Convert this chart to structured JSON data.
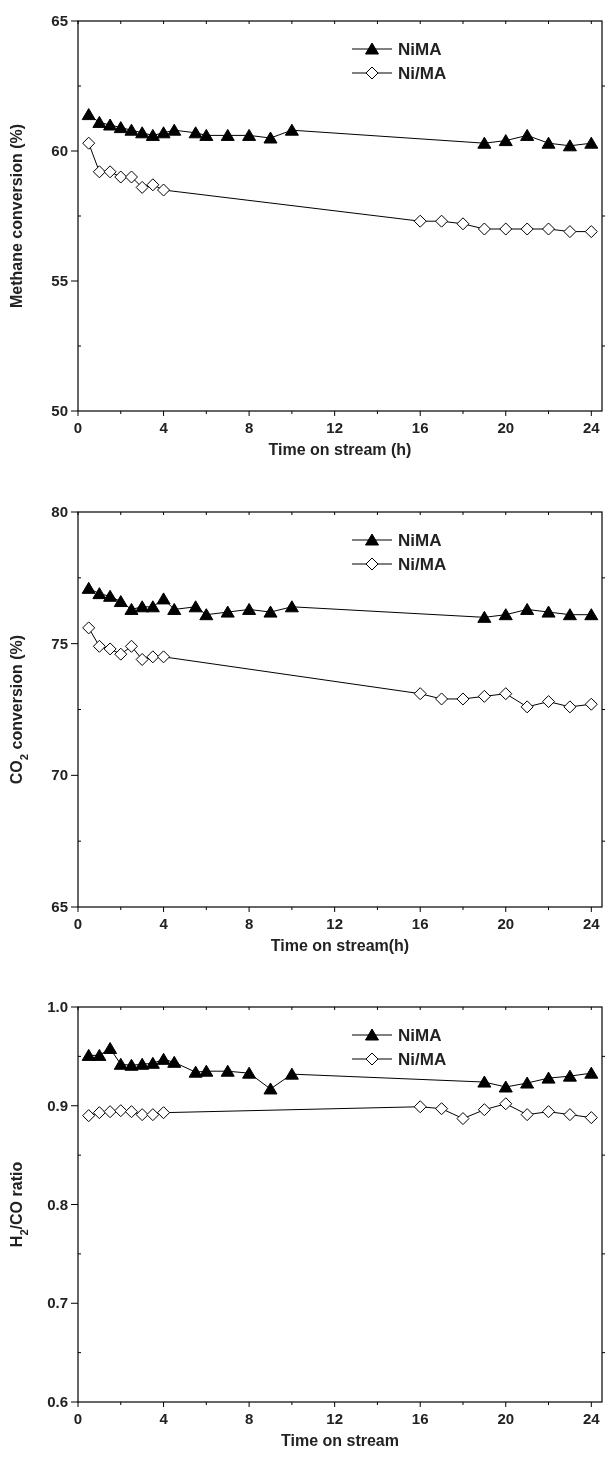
{
  "chart_data": [
    {
      "type": "line",
      "xlabel": "Time on stream (h)",
      "ylabel": "Methane conversion (%)",
      "xlim": [
        0,
        24.5
      ],
      "xticks": [
        0,
        {
          "value": 2,
          "label": null
        },
        4,
        {
          "value": 6,
          "label": null
        },
        8,
        {
          "value": 10,
          "label": null
        },
        12,
        {
          "value": 14,
          "label": null
        },
        16,
        {
          "value": 18,
          "label": null
        },
        20,
        {
          "value": 22,
          "label": null
        },
        24
      ],
      "ylim": [
        50,
        65
      ],
      "yticks": [
        50,
        {
          "value": 52.5,
          "label": null
        },
        55,
        {
          "value": 57.5,
          "label": null
        },
        60,
        {
          "value": 62.5,
          "label": null
        },
        65
      ],
      "legend": "top right",
      "line_style": "solid",
      "grid": false,
      "series": [
        {
          "name": "NiMA",
          "color": "#000000",
          "marker": "triangle",
          "x": [
            0.5,
            1,
            1.5,
            2,
            2.5,
            3,
            3.5,
            4,
            4.5,
            5.5,
            6,
            7,
            8,
            9,
            10,
            19,
            20,
            21,
            22,
            23,
            24
          ],
          "values": [
            61.4,
            61.1,
            61.0,
            60.9,
            60.8,
            60.7,
            60.6,
            60.7,
            60.8,
            60.7,
            60.6,
            60.6,
            60.6,
            60.5,
            60.8,
            60.3,
            60.4,
            60.6,
            60.3,
            60.2,
            60.3
          ]
        },
        {
          "name": "Ni/MA",
          "color": "#000000",
          "marker": "diamond",
          "x": [
            0.5,
            1,
            1.5,
            2,
            2.5,
            3,
            3.5,
            4,
            16,
            17,
            18,
            19,
            20,
            21,
            22,
            23,
            24
          ],
          "values": [
            60.3,
            59.2,
            59.2,
            59.0,
            59.0,
            58.6,
            58.7,
            58.5,
            57.3,
            57.3,
            57.2,
            57.0,
            57.0,
            57.0,
            57.0,
            56.9,
            56.9
          ]
        }
      ]
    },
    {
      "type": "line",
      "xlabel": "Time on stream(h)",
      "ylabel": "CO$_{2}$ conversion (%)",
      "xlim": [
        0,
        24.5
      ],
      "xticks": [
        0,
        {
          "value": 2,
          "label": null
        },
        4,
        {
          "value": 6,
          "label": null
        },
        8,
        {
          "value": 10,
          "label": null
        },
        12,
        {
          "value": 14,
          "label": null
        },
        16,
        {
          "value": 18,
          "label": null
        },
        20,
        {
          "value": 22,
          "label": null
        },
        24
      ],
      "ylim": [
        65,
        80
      ],
      "yticks": [
        65,
        {
          "value": 67.5,
          "label": null
        },
        70,
        {
          "value": 72.5,
          "label": null
        },
        75,
        {
          "value": 77.5,
          "label": null
        },
        80
      ],
      "legend": "top right",
      "line_style": "solid",
      "grid": false,
      "series": [
        {
          "name": "NiMA",
          "color": "#000000",
          "marker": "triangle",
          "x": [
            0.5,
            1,
            1.5,
            2,
            2.5,
            3,
            3.5,
            4,
            4.5,
            5.5,
            6,
            7,
            8,
            9,
            10,
            19,
            20,
            21,
            22,
            23,
            24
          ],
          "values": [
            77.1,
            76.9,
            76.8,
            76.6,
            76.3,
            76.4,
            76.4,
            76.7,
            76.3,
            76.4,
            76.1,
            76.2,
            76.3,
            76.2,
            76.4,
            76.0,
            76.1,
            76.3,
            76.2,
            76.1,
            76.1
          ]
        },
        {
          "name": "Ni/MA",
          "color": "#000000",
          "marker": "diamond",
          "x": [
            0.5,
            1,
            1.5,
            2,
            2.5,
            3,
            3.5,
            4,
            16,
            17,
            18,
            19,
            20,
            21,
            22,
            23,
            24
          ],
          "values": [
            75.6,
            74.9,
            74.8,
            74.6,
            74.9,
            74.4,
            74.5,
            74.5,
            73.1,
            72.9,
            72.9,
            73.0,
            73.1,
            72.6,
            72.8,
            72.6,
            72.7
          ]
        }
      ]
    },
    {
      "type": "line",
      "xlabel": "Time on stream",
      "ylabel": "H$_{2}$/CO ratio",
      "xlim": [
        0,
        24.5
      ],
      "xticks": [
        0,
        {
          "value": 2,
          "label": null
        },
        4,
        {
          "value": 6,
          "label": null
        },
        8,
        {
          "value": 10,
          "label": null
        },
        12,
        {
          "value": 14,
          "label": null
        },
        16,
        {
          "value": 18,
          "label": null
        },
        20,
        {
          "value": 22,
          "label": null
        },
        24
      ],
      "ylim": [
        0.6,
        1.0
      ],
      "yticks": [
        {
          "value": 0.6,
          "label": "0.6"
        },
        {
          "value": 0.65,
          "label": null
        },
        {
          "value": 0.7,
          "label": "0.7"
        },
        {
          "value": 0.75,
          "label": null
        },
        {
          "value": 0.8,
          "label": "0.8"
        },
        {
          "value": 0.85,
          "label": null
        },
        {
          "value": 0.9,
          "label": "0.9"
        },
        {
          "value": 0.95,
          "label": null
        },
        {
          "value": 1.0,
          "label": "1.0"
        }
      ],
      "legend": "top right",
      "line_style": "solid",
      "grid": false,
      "series": [
        {
          "name": "NiMA",
          "color": "#000000",
          "marker": "triangle",
          "x": [
            0.5,
            1,
            1.5,
            2,
            2.5,
            3,
            3.5,
            4,
            4.5,
            5.5,
            6,
            7,
            8,
            9,
            10,
            19,
            20,
            21,
            22,
            23,
            24
          ],
          "values": [
            0.951,
            0.951,
            0.958,
            0.942,
            0.941,
            0.942,
            0.943,
            0.947,
            0.944,
            0.934,
            0.935,
            0.935,
            0.933,
            0.917,
            0.932,
            0.924,
            0.919,
            0.923,
            0.928,
            0.93,
            0.933
          ]
        },
        {
          "name": "Ni/MA",
          "color": "#000000",
          "marker": "diamond",
          "x": [
            0.5,
            1,
            1.5,
            2,
            2.5,
            3,
            3.5,
            4,
            16,
            17,
            18,
            19,
            20,
            21,
            22,
            23,
            24
          ],
          "values": [
            0.89,
            0.893,
            0.894,
            0.895,
            0.894,
            0.891,
            0.891,
            0.893,
            0.899,
            0.897,
            0.887,
            0.896,
            0.902,
            0.891,
            0.894,
            0.891,
            0.888
          ]
        }
      ]
    }
  ]
}
